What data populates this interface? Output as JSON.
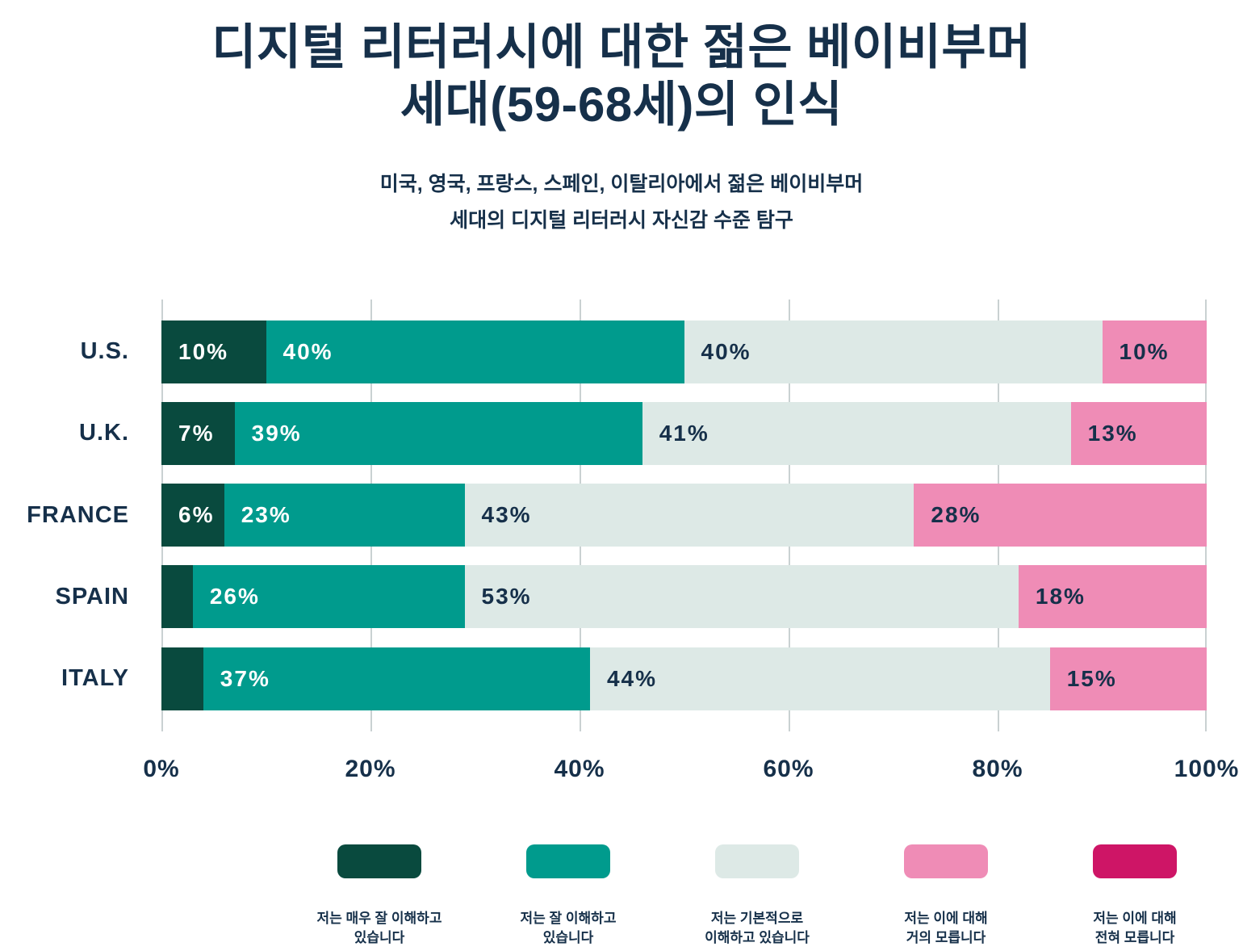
{
  "title": "디지털 리터러시에 대한 젊은 베이비부머\n세대(59-68세)의 인식",
  "subtitle": "미국, 영국, 프랑스, 스페인, 이탈리아에서 젊은 베이비부머\n세대의 디지털 리터러시 자신감 수준 탐구",
  "colors": {
    "text_navy": "#16304a",
    "gridline": "#c9d1d2",
    "background": "#ffffff"
  },
  "chart_data": {
    "type": "bar",
    "orientation": "horizontal",
    "stacked": true,
    "categories": [
      "U.S.",
      "U.K.",
      "FRANCE",
      "SPAIN",
      "ITALY"
    ],
    "series": [
      {
        "name": "저는 매우 잘 이해하고 있습니다",
        "legend_label": "저는 매우 잘 이해하고\n있습니다",
        "color": "#094a3e",
        "values": [
          10,
          7,
          6,
          3,
          4
        ],
        "labels": [
          "10%",
          "7%",
          "6%",
          "",
          ""
        ]
      },
      {
        "name": "저는 잘 이해하고 있습니다",
        "legend_label": "저는 잘 이해하고\n있습니다",
        "color": "#009b8d",
        "values": [
          40,
          39,
          23,
          26,
          37
        ],
        "labels": [
          "40%",
          "39%",
          "23%",
          "26%",
          "37%"
        ]
      },
      {
        "name": "저는 기본적으로 이해하고 있습니다",
        "legend_label": "저는 기본적으로\n이해하고 있습니다",
        "color": "#dde9e6",
        "values": [
          40,
          41,
          43,
          53,
          44
        ],
        "labels": [
          "40%",
          "41%",
          "43%",
          "53%",
          "44%"
        ]
      },
      {
        "name": "저는 이에 대해 거의 모릅니다",
        "legend_label": "저는 이에 대해\n거의 모릅니다",
        "color": "#ef8cb6",
        "values": [
          10,
          13,
          28,
          18,
          15
        ],
        "labels": [
          "10%",
          "13%",
          "28%",
          "18%",
          "15%"
        ]
      },
      {
        "name": "저는 이에 대해 전혀 모릅니다",
        "legend_label": "저는 이에 대해\n전혀 모릅니다",
        "color": "#ce1566",
        "values": [
          0,
          0,
          0,
          0,
          0
        ],
        "labels": [
          "",
          "",
          "",
          "",
          ""
        ]
      }
    ],
    "x_ticks": [
      "0%",
      "20%",
      "40%",
      "60%",
      "80%",
      "100%"
    ],
    "xlim": [
      0,
      100
    ],
    "grid": "vertical",
    "legend_position": "bottom"
  }
}
